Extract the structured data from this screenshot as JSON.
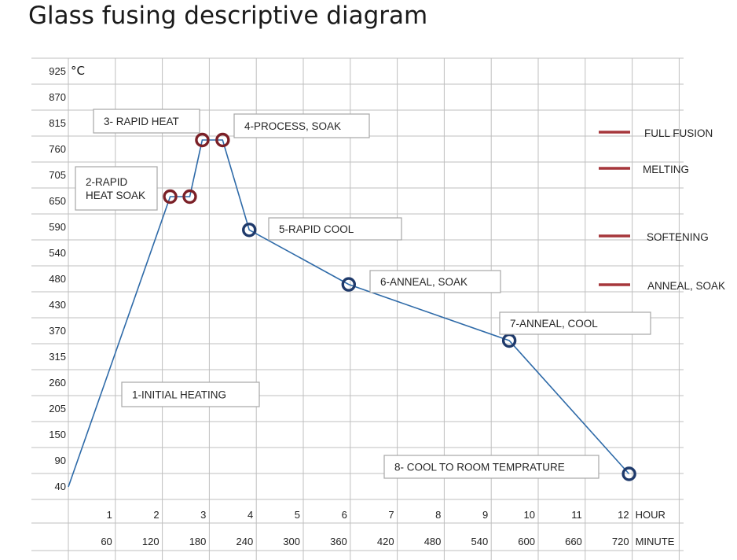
{
  "chart_data": {
    "type": "line",
    "title": "Glass fusing descriptive diagram",
    "y_unit": "°C",
    "y_ticks": [
      "925",
      "870",
      "815",
      "760",
      "705",
      "650",
      "590",
      "540",
      "480",
      "430",
      "370",
      "315",
      "260",
      "205",
      "150",
      "90",
      "40"
    ],
    "hour_ticks": [
      "1",
      "2",
      "3",
      "4",
      "5",
      "6",
      "7",
      "8",
      "9",
      "10",
      "11",
      "12"
    ],
    "hour_unit": "HOUR",
    "minute_ticks": [
      "60",
      "120",
      "180",
      "240",
      "300",
      "360",
      "420",
      "480",
      "540",
      "600",
      "660",
      "720"
    ],
    "minute_unit": "MINUTE",
    "grid": true,
    "series": [
      {
        "points": [
          {
            "minute": 0,
            "temp": 40
          },
          {
            "minute": 130,
            "temp": 660
          },
          {
            "minute": 155,
            "temp": 660
          },
          {
            "minute": 171,
            "temp": 780
          },
          {
            "minute": 197,
            "temp": 780
          },
          {
            "minute": 231,
            "temp": 585
          },
          {
            "minute": 358,
            "temp": 470
          },
          {
            "minute": 563,
            "temp": 350
          },
          {
            "minute": 716,
            "temp": 65
          }
        ],
        "marker_colors": [
          "none",
          "#7b2027",
          "#7b2027",
          "#7b2027",
          "#7b2027",
          "#1f3a6b",
          "#1f3a6b",
          "#1f3a6b",
          "#1f3a6b"
        ]
      }
    ],
    "annotations": [
      {
        "text": [
          "3- RAPID HEAT"
        ]
      },
      {
        "text": [
          "4-PROCESS, SOAK"
        ]
      },
      {
        "text": [
          "2-RAPID",
          "HEAT SOAK"
        ]
      },
      {
        "text": [
          "5-RAPID COOL"
        ]
      },
      {
        "text": [
          "6-ANNEAL, SOAK"
        ]
      },
      {
        "text": [
          "7-ANNEAL, COOL"
        ]
      },
      {
        "text": [
          "1-INITIAL HEATING"
        ]
      },
      {
        "text": [
          "8- COOL TO ROOM TEMPRATURE"
        ]
      }
    ],
    "legend": {
      "placement": "right",
      "entries": [
        {
          "label": "FULL FUSION",
          "color": "#a6373b"
        },
        {
          "label": "MELTING",
          "color": "#a6373b"
        },
        {
          "label": "SOFTENING",
          "color": "#a6373b"
        },
        {
          "label": "ANNEAL, SOAK",
          "color": "#a6373b"
        }
      ]
    },
    "colors": {
      "line": "#2e6aa8",
      "marker_hot": "#7b2027",
      "marker_cool": "#1f3a6b",
      "grid": "#bfbfbf",
      "legend": "#a6373b"
    }
  }
}
